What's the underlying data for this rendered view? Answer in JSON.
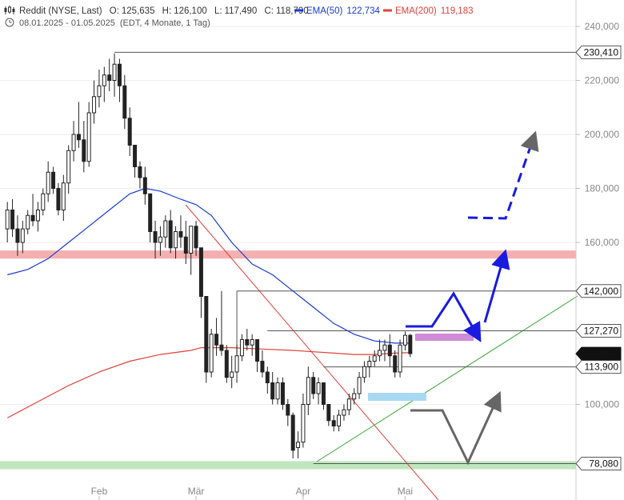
{
  "header": {
    "title": "Reddit (NYSE, Last)",
    "open_label": "O:",
    "open": "125,635",
    "high_label": "H:",
    "high": "126,100",
    "low_label": "L:",
    "low": "117,490",
    "close_label": "C:",
    "close": "118,790",
    "ema50_label": "EMA(50)",
    "ema50_value": "122,734",
    "ema50_color": "#1a3ad6",
    "ema200_label": "EMA(200)",
    "ema200_value": "119,183",
    "ema200_color": "#e0413a",
    "range": "08.01.2025 - 01.05.2025",
    "range_note": "(EDT, 4 Monate, 1 Tag)"
  },
  "chart_data": {
    "type": "candlestick",
    "ylim": [
      72000,
      248000
    ],
    "y_ticks": [
      {
        "value": 240000,
        "label": "240,000"
      },
      {
        "value": 220000,
        "label": "220,000"
      },
      {
        "value": 200000,
        "label": "200,000"
      },
      {
        "value": 180000,
        "label": "180,000"
      },
      {
        "value": 160000,
        "label": "160,000"
      },
      {
        "value": 100000,
        "label": "100,000"
      }
    ],
    "x_ticks": [
      {
        "index": 18,
        "label": "Feb"
      },
      {
        "index": 37,
        "label": "Mär"
      },
      {
        "index": 58,
        "label": "Apr"
      },
      {
        "index": 78,
        "label": "Mai"
      }
    ],
    "n_slots": 80,
    "candles": [
      [
        165,
        175,
        160,
        172
      ],
      [
        172,
        176,
        162,
        165
      ],
      [
        165,
        170,
        155,
        160
      ],
      [
        160,
        168,
        156,
        165
      ],
      [
        165,
        172,
        163,
        170
      ],
      [
        170,
        178,
        166,
        168
      ],
      [
        168,
        175,
        164,
        172
      ],
      [
        172,
        180,
        170,
        178
      ],
      [
        178,
        190,
        175,
        186
      ],
      [
        186,
        188,
        178,
        180
      ],
      [
        180,
        182,
        170,
        172
      ],
      [
        172,
        185,
        168,
        182
      ],
      [
        182,
        196,
        178,
        194
      ],
      [
        194,
        205,
        190,
        200
      ],
      [
        200,
        212,
        195,
        198
      ],
      [
        198,
        205,
        186,
        190
      ],
      [
        190,
        212,
        188,
        208
      ],
      [
        208,
        220,
        204,
        214
      ],
      [
        214,
        224,
        210,
        218
      ],
      [
        218,
        225,
        212,
        222
      ],
      [
        222,
        228,
        216,
        220
      ],
      [
        220,
        230,
        214,
        226
      ],
      [
        226,
        228,
        212,
        218
      ],
      [
        218,
        222,
        202,
        206
      ],
      [
        206,
        210,
        192,
        196
      ],
      [
        196,
        194,
        184,
        188
      ],
      [
        188,
        190,
        180,
        184
      ],
      [
        184,
        188,
        174,
        178
      ],
      [
        178,
        176,
        160,
        164
      ],
      [
        164,
        168,
        154,
        160
      ],
      [
        160,
        166,
        155,
        162
      ],
      [
        162,
        170,
        158,
        168
      ],
      [
        168,
        172,
        156,
        158
      ],
      [
        158,
        166,
        154,
        164
      ],
      [
        164,
        170,
        158,
        162
      ],
      [
        162,
        168,
        152,
        156
      ],
      [
        156,
        166,
        148,
        166
      ],
      [
        166,
        168,
        155,
        158
      ],
      [
        158,
        150,
        132,
        140
      ],
      [
        140,
        138,
        108,
        112
      ],
      [
        112,
        128,
        110,
        126
      ],
      [
        126,
        132,
        118,
        122
      ],
      [
        122,
        142,
        118,
        120
      ],
      [
        120,
        122,
        108,
        110
      ],
      [
        110,
        118,
        106,
        112
      ],
      [
        112,
        122,
        108,
        118
      ],
      [
        118,
        126,
        116,
        124
      ],
      [
        124,
        128,
        120,
        122
      ],
      [
        122,
        126,
        118,
        124
      ],
      [
        124,
        124,
        112,
        116
      ],
      [
        116,
        120,
        110,
        112
      ],
      [
        112,
        114,
        104,
        108
      ],
      [
        108,
        112,
        100,
        102
      ],
      [
        102,
        110,
        100,
        108
      ],
      [
        108,
        110,
        98,
        100
      ],
      [
        100,
        102,
        92,
        96
      ],
      [
        96,
        97,
        80,
        83
      ],
      [
        84,
        90,
        80,
        86
      ],
      [
        86,
        104,
        84,
        100
      ],
      [
        100,
        114,
        96,
        110
      ],
      [
        110,
        112,
        102,
        104
      ],
      [
        104,
        110,
        100,
        108
      ],
      [
        108,
        106,
        98,
        100
      ],
      [
        100,
        98,
        92,
        94
      ],
      [
        94,
        96,
        90,
        92
      ],
      [
        92,
        98,
        90,
        96
      ],
      [
        96,
        100,
        94,
        98
      ],
      [
        98,
        104,
        96,
        102
      ],
      [
        102,
        106,
        100,
        104
      ],
      [
        104,
        112,
        102,
        110
      ],
      [
        110,
        116,
        108,
        114
      ],
      [
        114,
        118,
        110,
        116
      ],
      [
        116,
        120,
        114,
        118
      ],
      [
        118,
        124,
        116,
        120
      ],
      [
        120,
        124,
        116,
        122
      ],
      [
        122,
        126,
        114,
        118
      ],
      [
        118,
        120,
        110,
        112
      ],
      [
        112,
        124,
        110,
        122
      ],
      [
        122,
        127,
        120,
        125.6
      ],
      [
        125.6,
        126.1,
        117.5,
        118.8
      ]
    ],
    "ema50": [
      [
        0,
        148
      ],
      [
        4,
        150
      ],
      [
        8,
        154
      ],
      [
        12,
        160
      ],
      [
        16,
        166
      ],
      [
        20,
        172
      ],
      [
        24,
        178
      ],
      [
        27,
        180
      ],
      [
        30,
        179
      ],
      [
        34,
        176
      ],
      [
        37,
        174
      ],
      [
        40,
        170
      ],
      [
        44,
        160
      ],
      [
        48,
        152
      ],
      [
        52,
        148
      ],
      [
        56,
        142
      ],
      [
        60,
        136
      ],
      [
        64,
        130
      ],
      [
        68,
        126
      ],
      [
        72,
        123.5
      ],
      [
        76,
        122.7
      ],
      [
        79,
        122.7
      ]
    ],
    "ema200": [
      [
        0,
        95
      ],
      [
        6,
        101
      ],
      [
        12,
        107
      ],
      [
        18,
        112
      ],
      [
        24,
        116
      ],
      [
        30,
        118.5
      ],
      [
        36,
        120
      ],
      [
        38,
        121
      ],
      [
        44,
        121
      ],
      [
        50,
        120.5
      ],
      [
        56,
        120
      ],
      [
        60,
        119.5
      ],
      [
        64,
        119
      ],
      [
        68,
        118.5
      ],
      [
        72,
        118.5
      ],
      [
        76,
        119
      ],
      [
        79,
        119.2
      ]
    ],
    "zones": [
      {
        "y0": 154,
        "y1": 157,
        "color": "#f4b0b0"
      },
      {
        "y0": 76,
        "y1": 79,
        "color": "#bfe6bf"
      }
    ],
    "price_tags": [
      {
        "value": 230410,
        "label": "230,410",
        "from": 21,
        "dark": false
      },
      {
        "value": 142000,
        "label": "142,000",
        "from": 45,
        "dark": false
      },
      {
        "value": 127270,
        "label": "127,270",
        "from": 51,
        "dark": false
      },
      {
        "value": 118790,
        "label": "118,790",
        "from": null,
        "dark": true
      },
      {
        "value": 113900,
        "label": "113,900",
        "from": 62,
        "dark": false
      },
      {
        "value": 78080,
        "label": "78,080",
        "from": 60,
        "dark": false
      }
    ]
  }
}
